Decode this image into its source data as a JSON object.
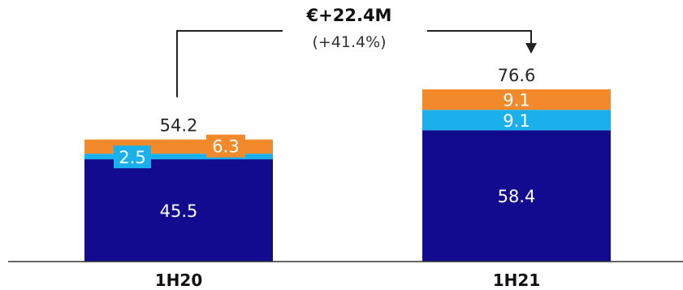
{
  "chart_data": {
    "type": "bar",
    "stacked": true,
    "categories": [
      "1H20",
      "1H21"
    ],
    "series": [
      {
        "values": [
          45.5,
          58.4
        ],
        "color": "#120a8f"
      },
      {
        "values": [
          2.5,
          9.1
        ],
        "color": "#1ab0ec"
      },
      {
        "values": [
          6.3,
          9.1
        ],
        "color": "#f28a2b"
      }
    ],
    "totals": [
      "54.2",
      "76.6"
    ],
    "segment_labels": [
      [
        "45.5",
        "2.5",
        "6.3"
      ],
      [
        "58.4",
        "9.1",
        "9.1"
      ]
    ],
    "annotation": {
      "main": "€+22.4M",
      "sub": "(+41.4%)"
    },
    "ylim": [
      0,
      85
    ]
  }
}
